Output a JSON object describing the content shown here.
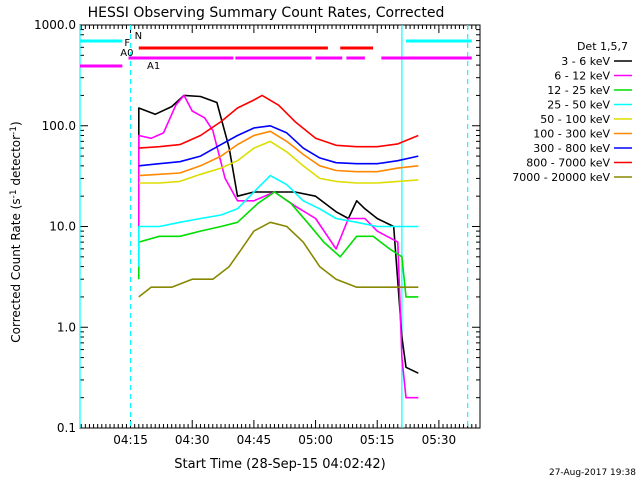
{
  "chart_data": {
    "type": "line",
    "title": "HESSI Observing Summary Count Rates, Corrected",
    "xlabel": "Start Time (28-Sep-15 04:02:42)",
    "ylabel": "Corrected Count Rate (s",
    "ylabel_sup1": "-1",
    "ylabel_mid": " detector",
    "ylabel_sup2": "-1",
    "ylabel_end": ")",
    "y_scale": "log",
    "ylim": [
      0.1,
      1000.0
    ],
    "xlim": [
      "04:02:42",
      "05:40:00"
    ],
    "x_ticks": [
      "04:15",
      "04:30",
      "04:45",
      "05:00",
      "05:15",
      "05:30"
    ],
    "y_ticks": [
      "0.1",
      "1.0",
      "10.0",
      "100.0",
      "1000.0"
    ],
    "legend": {
      "position": "right",
      "header": "Det 1,5,7",
      "entries": [
        {
          "label": "3 - 6 keV",
          "color": "#000000"
        },
        {
          "label": "6 - 12 keV",
          "color": "#ff00ff"
        },
        {
          "label": "12 - 25 keV",
          "color": "#00dd00"
        },
        {
          "label": "25 - 50 keV",
          "color": "#00ffff"
        },
        {
          "label": "50 - 100 keV",
          "color": "#dddd00"
        },
        {
          "label": "100 - 300 keV",
          "color": "#ff8800"
        },
        {
          "label": "300 - 800 keV",
          "color": "#0000ff"
        },
        {
          "label": "800 - 7000 keV",
          "color": "#ff0000"
        },
        {
          "label": "7000 - 20000 keV",
          "color": "#888800"
        }
      ]
    },
    "series": [
      {
        "name": "3 - 6 keV",
        "color": "#000000",
        "points": [
          [
            "04:17",
            60
          ],
          [
            "04:17",
            150
          ],
          [
            "04:21",
            130
          ],
          [
            "04:25",
            155
          ],
          [
            "04:28",
            200
          ],
          [
            "04:32",
            195
          ],
          [
            "04:36",
            170
          ],
          [
            "04:39",
            60
          ],
          [
            "04:41",
            20
          ],
          [
            "04:45",
            22
          ],
          [
            "04:50",
            22
          ],
          [
            "04:55",
            22
          ],
          [
            "05:00",
            20
          ],
          [
            "05:05",
            14
          ],
          [
            "05:08",
            12
          ],
          [
            "05:10",
            18
          ],
          [
            "05:12",
            15
          ],
          [
            "05:15",
            12
          ],
          [
            "05:19",
            10
          ],
          [
            "05:21",
            0.8
          ],
          [
            "05:22",
            0.4
          ],
          [
            "05:25",
            0.35
          ]
        ]
      },
      {
        "name": "6 - 12 keV",
        "color": "#ff00ff",
        "points": [
          [
            "04:17",
            10
          ],
          [
            "04:17",
            80
          ],
          [
            "04:20",
            75
          ],
          [
            "04:23",
            85
          ],
          [
            "04:26",
            160
          ],
          [
            "04:28",
            200
          ],
          [
            "04:30",
            140
          ],
          [
            "04:33",
            120
          ],
          [
            "04:35",
            90
          ],
          [
            "04:38",
            30
          ],
          [
            "04:41",
            18
          ],
          [
            "04:45",
            18
          ],
          [
            "04:50",
            22
          ],
          [
            "04:55",
            16
          ],
          [
            "05:00",
            12
          ],
          [
            "05:05",
            6
          ],
          [
            "05:08",
            12
          ],
          [
            "05:12",
            12
          ],
          [
            "05:15",
            9
          ],
          [
            "05:20",
            7
          ],
          [
            "05:21",
            0.5
          ],
          [
            "05:22",
            0.2
          ],
          [
            "05:25",
            0.2
          ]
        ]
      },
      {
        "name": "12 - 25 keV",
        "color": "#00dd00",
        "points": [
          [
            "04:17",
            3
          ],
          [
            "04:17",
            7
          ],
          [
            "04:22",
            8
          ],
          [
            "04:27",
            8
          ],
          [
            "04:32",
            9
          ],
          [
            "04:37",
            10
          ],
          [
            "04:41",
            11
          ],
          [
            "04:46",
            17
          ],
          [
            "04:50",
            22
          ],
          [
            "04:54",
            17
          ],
          [
            "04:58",
            11
          ],
          [
            "05:02",
            7
          ],
          [
            "05:06",
            5
          ],
          [
            "05:10",
            8
          ],
          [
            "05:14",
            8
          ],
          [
            "05:18",
            6
          ],
          [
            "05:21",
            5
          ],
          [
            "05:22",
            2
          ],
          [
            "05:25",
            2
          ]
        ]
      },
      {
        "name": "25 - 50 keV",
        "color": "#00ffff",
        "points": [
          [
            "04:17",
            4
          ],
          [
            "04:17",
            10
          ],
          [
            "04:22",
            10
          ],
          [
            "04:27",
            11
          ],
          [
            "04:32",
            12
          ],
          [
            "04:37",
            13
          ],
          [
            "04:41",
            15
          ],
          [
            "04:45",
            22
          ],
          [
            "04:49",
            32
          ],
          [
            "04:53",
            26
          ],
          [
            "04:57",
            18
          ],
          [
            "05:01",
            15
          ],
          [
            "05:05",
            12
          ],
          [
            "05:10",
            11
          ],
          [
            "05:15",
            10
          ],
          [
            "05:20",
            10
          ],
          [
            "05:25",
            10
          ]
        ]
      },
      {
        "name": "50 - 100 keV",
        "color": "#dddd00",
        "points": [
          [
            "04:17",
            27
          ],
          [
            "04:22",
            27
          ],
          [
            "04:27",
            28
          ],
          [
            "04:32",
            33
          ],
          [
            "04:37",
            38
          ],
          [
            "04:41",
            45
          ],
          [
            "04:45",
            60
          ],
          [
            "04:49",
            70
          ],
          [
            "04:53",
            55
          ],
          [
            "04:57",
            40
          ],
          [
            "05:01",
            30
          ],
          [
            "05:05",
            28
          ],
          [
            "05:10",
            27
          ],
          [
            "05:15",
            27
          ],
          [
            "05:20",
            28
          ],
          [
            "05:25",
            29
          ]
        ]
      },
      {
        "name": "100 - 300 keV",
        "color": "#ff8800",
        "points": [
          [
            "04:17",
            32
          ],
          [
            "04:22",
            33
          ],
          [
            "04:27",
            34
          ],
          [
            "04:32",
            40
          ],
          [
            "04:37",
            50
          ],
          [
            "04:41",
            65
          ],
          [
            "04:45",
            80
          ],
          [
            "04:49",
            88
          ],
          [
            "04:53",
            70
          ],
          [
            "04:57",
            52
          ],
          [
            "05:01",
            40
          ],
          [
            "05:05",
            36
          ],
          [
            "05:10",
            35
          ],
          [
            "05:15",
            35
          ],
          [
            "05:20",
            38
          ],
          [
            "05:25",
            40
          ]
        ]
      },
      {
        "name": "300 - 800 keV",
        "color": "#0000ff",
        "points": [
          [
            "04:17",
            40
          ],
          [
            "04:22",
            42
          ],
          [
            "04:27",
            44
          ],
          [
            "04:32",
            50
          ],
          [
            "04:37",
            65
          ],
          [
            "04:41",
            80
          ],
          [
            "04:45",
            95
          ],
          [
            "04:49",
            100
          ],
          [
            "04:53",
            85
          ],
          [
            "04:57",
            60
          ],
          [
            "05:01",
            48
          ],
          [
            "05:05",
            43
          ],
          [
            "05:10",
            42
          ],
          [
            "05:15",
            42
          ],
          [
            "05:20",
            45
          ],
          [
            "05:25",
            50
          ]
        ]
      },
      {
        "name": "800 - 7000 keV",
        "color": "#ff0000",
        "points": [
          [
            "04:17",
            60
          ],
          [
            "04:22",
            62
          ],
          [
            "04:27",
            65
          ],
          [
            "04:32",
            80
          ],
          [
            "04:37",
            110
          ],
          [
            "04:41",
            150
          ],
          [
            "04:45",
            180
          ],
          [
            "04:47",
            200
          ],
          [
            "04:51",
            160
          ],
          [
            "04:55",
            110
          ],
          [
            "05:00",
            75
          ],
          [
            "05:05",
            64
          ],
          [
            "05:10",
            62
          ],
          [
            "05:15",
            62
          ],
          [
            "05:20",
            66
          ],
          [
            "05:25",
            80
          ]
        ]
      },
      {
        "name": "7000 - 20000 keV",
        "color": "#888800",
        "points": [
          [
            "04:17",
            2
          ],
          [
            "04:20",
            2.5
          ],
          [
            "04:25",
            2.5
          ],
          [
            "04:30",
            3
          ],
          [
            "04:35",
            3
          ],
          [
            "04:39",
            4
          ],
          [
            "04:42",
            6
          ],
          [
            "04:45",
            9
          ],
          [
            "04:49",
            11
          ],
          [
            "04:53",
            10
          ],
          [
            "04:57",
            7
          ],
          [
            "05:01",
            4
          ],
          [
            "05:05",
            3
          ],
          [
            "05:10",
            2.5
          ],
          [
            "05:15",
            2.5
          ],
          [
            "05:20",
            2.5
          ],
          [
            "05:25",
            2.5
          ]
        ]
      }
    ],
    "flag_bars": [
      {
        "label": "N",
        "color": "#00ffff",
        "segments": [
          [
            "04:02:42",
            "04:13:00"
          ],
          [
            "05:22:00",
            "05:38:00"
          ]
        ]
      },
      {
        "label": "F",
        "color": "#ff0000",
        "segments": [
          [
            "04:17:00",
            "05:03:00"
          ],
          [
            "05:06:00",
            "05:14:00"
          ]
        ]
      },
      {
        "label": "A0",
        "color": "#ff00ff",
        "segments": [
          [
            "04:14:30",
            "04:40:00"
          ],
          [
            "04:40:30",
            "04:59:00"
          ],
          [
            "05:00:00",
            "05:06:30"
          ],
          [
            "05:07:30",
            "05:12:00"
          ],
          [
            "05:16:00",
            "05:38:00"
          ]
        ]
      },
      {
        "label": "A1",
        "color": "#ff00ff",
        "segments": [
          [
            "04:02:42",
            "04:13:00"
          ]
        ]
      }
    ],
    "vertical_markers": [
      {
        "time": "04:02:42",
        "style": "solid",
        "color": "#00ffff"
      },
      {
        "time": "04:15:00",
        "style": "dashed",
        "color": "#00ffff"
      },
      {
        "time": "05:21:00",
        "style": "solid",
        "color": "#00ffff"
      },
      {
        "time": "05:37:00",
        "style": "dashed",
        "color": "#00ffff"
      }
    ]
  },
  "footer": {
    "date_stamp": "27-Aug-2017 19:38"
  }
}
